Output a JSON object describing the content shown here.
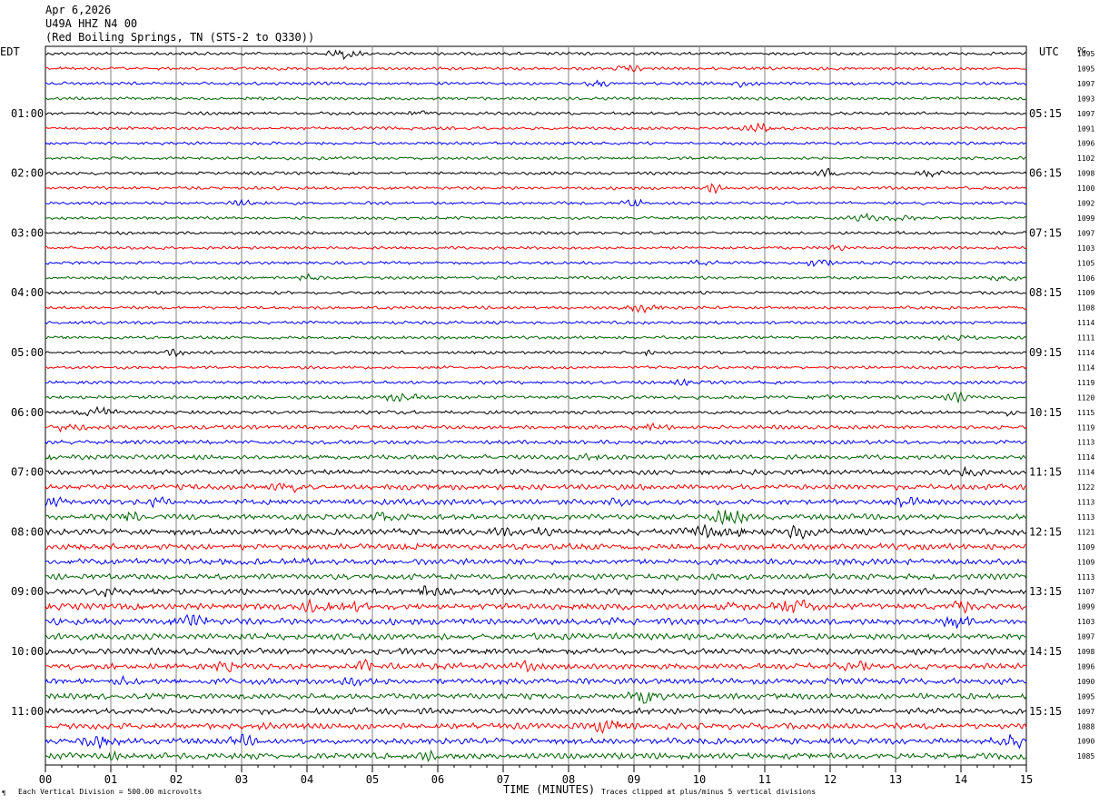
{
  "header": {
    "date": "Apr 6,2026",
    "station": "U49A HHZ N4 00",
    "location": "(Red Boiling Springs, TN (STS-2 to Q330))"
  },
  "labels": {
    "edt": "EDT",
    "utc": "UTC",
    "pg": "PG"
  },
  "footer": {
    "vertical_division": "Each Vertical Division =  500.00 microvolts",
    "clipping": "Traces clipped at plus/minus 5 vertical divisions",
    "mark": "¶"
  },
  "colors": {
    "trace_cycle": [
      "#000000",
      "#ff0000",
      "#0000ff",
      "#006400"
    ],
    "grid": "#808080"
  },
  "chart_data": {
    "type": "line",
    "title": "",
    "xlabel": "TIME (MINUTES)",
    "x_ticks": [
      "00",
      "01",
      "02",
      "03",
      "04",
      "05",
      "06",
      "07",
      "08",
      "09",
      "10",
      "11",
      "12",
      "13",
      "14",
      "15"
    ],
    "xlim": [
      0,
      15
    ],
    "lines_per_hour": 4,
    "minutes_per_line": 15,
    "edt_hours": [
      "01:00",
      "02:00",
      "03:00",
      "04:00",
      "05:00",
      "06:00",
      "07:00",
      "08:00",
      "09:00",
      "10:00",
      "11:00"
    ],
    "utc_hours": [
      "05:15",
      "06:15",
      "07:15",
      "08:15",
      "09:15",
      "10:15",
      "11:15",
      "12:15",
      "13:15",
      "14:15",
      "15:15"
    ],
    "pg_values": [
      "1095",
      "1095",
      "1097",
      "1093",
      "1097",
      "1091",
      "1096",
      "1102",
      "1098",
      "1100",
      "1092",
      "1099",
      "1097",
      "1103",
      "1105",
      "1106",
      "1109",
      "1108",
      "1114",
      "1111",
      "1114",
      "1114",
      "1119",
      "1120",
      "1115",
      "1119",
      "1113",
      "1114",
      "1114",
      "1122",
      "1113",
      "1113",
      "1121",
      "1109",
      "1109",
      "1113",
      "1107",
      "1099",
      "1103",
      "1097",
      "1098",
      "1096",
      "1090",
      "1095",
      "1097",
      "1088",
      "1090",
      "1085"
    ],
    "activity": [
      1,
      1,
      1,
      1,
      1,
      1,
      1,
      1,
      1,
      1,
      1,
      1,
      1,
      1,
      1,
      1,
      1,
      1,
      1,
      1,
      1,
      1,
      1.1,
      1.2,
      1.2,
      1.3,
      1.3,
      1.5,
      1.7,
      1.8,
      1.8,
      1.8,
      2,
      2,
      2,
      2,
      2,
      2.1,
      2.1,
      2,
      2,
      2,
      2,
      1.9,
      2,
      2,
      2,
      2
    ]
  }
}
